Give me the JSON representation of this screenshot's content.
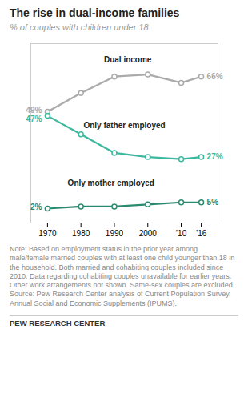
{
  "chart_data": {
    "type": "line",
    "title": "The rise in dual-income families",
    "subtitle": "% of couples with children under 18",
    "x": [
      1970,
      1980,
      1990,
      2000,
      2010,
      2016
    ],
    "series": [
      {
        "name": "Dual income",
        "color": "#aaaaaa",
        "marker": "o",
        "values": [
          49,
          58,
          66,
          67,
          63,
          66
        ],
        "value_labels": [
          "49%",
          null,
          null,
          null,
          null,
          "66%"
        ]
      },
      {
        "name": "Only father employed",
        "color": "#3db89e",
        "marker": "o",
        "values": [
          47,
          38,
          29,
          27,
          26,
          27
        ],
        "value_labels": [
          "47%",
          null,
          null,
          null,
          null,
          "27%"
        ]
      },
      {
        "name": "Only mother employed",
        "color": "#2a8a6e",
        "marker": "o",
        "values": [
          2,
          3,
          3,
          4,
          5,
          5
        ],
        "value_labels": [
          "2%",
          null,
          null,
          null,
          null,
          "5%"
        ]
      }
    ],
    "annotations": [
      {
        "text": "Dual income",
        "x": 1994,
        "y": 73
      },
      {
        "text": "Only father employed",
        "x": 1993,
        "y": 41
      },
      {
        "text": "Only mother employed",
        "x": 1989,
        "y": 13
      }
    ],
    "xlim": [
      1965,
      2021
    ],
    "xticks": [
      1970,
      1980,
      1990,
      2000,
      {
        "value": 2010,
        "label": "’10"
      },
      {
        "value": 2016,
        "label": "’16"
      }
    ],
    "ylim": [
      -5,
      82
    ],
    "tick_labels": "x",
    "grid": false,
    "data_labels": true,
    "note": "Note: Based on employment status in the prior year among male/female married couples with at least one child younger than 18 in the household. Both married and cohabiting couples included since 2010. Data regarding cohabiting couples unavailable for earlier years. Other work arrangements not shown. Same-sex couples are excluded.\nSource: Pew Research Center analysis of Current Population Survey, Annual Social and Economic Supplements (IPUMS).",
    "footer": "PEW RESEARCH CENTER"
  }
}
